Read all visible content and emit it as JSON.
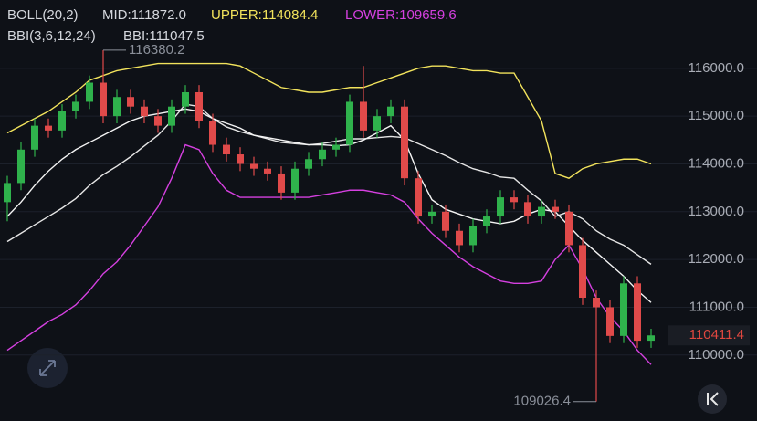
{
  "chart_data": {
    "type": "candlestick",
    "indicator_title": "BOLL(20,2)",
    "bbi_title": "BBI(3,6,12,24)",
    "up_color": "#2fb24c",
    "down_color": "#e04a4a",
    "open": [
      113200,
      113600,
      114300,
      114800,
      114700,
      115100,
      115300,
      115700,
      115000,
      115400,
      115200,
      115000,
      114800,
      115200,
      115500,
      114900,
      114400,
      114200,
      114000,
      113900,
      113800,
      113400,
      113900,
      114100,
      114300,
      114400,
      115300,
      114700,
      115000,
      115200,
      113700,
      112900,
      113000,
      112600,
      112300,
      112700,
      112900,
      113300,
      113200,
      112900,
      113100,
      113000,
      112300,
      111200,
      111000,
      110400,
      111500,
      110300
    ],
    "high": [
      113750,
      114450,
      114950,
      114950,
      115250,
      115450,
      115850,
      116380.2,
      115550,
      115550,
      115350,
      115150,
      115350,
      115650,
      115650,
      115050,
      114550,
      114350,
      114150,
      114050,
      113950,
      114050,
      114250,
      114450,
      114550,
      115450,
      116050,
      115150,
      115350,
      115350,
      113850,
      113150,
      113150,
      112750,
      112850,
      113050,
      113450,
      113450,
      113350,
      113250,
      113250,
      113150,
      112450,
      111350,
      111150,
      111650,
      111650,
      110550
    ],
    "low": [
      112800,
      113450,
      114150,
      114550,
      114550,
      114950,
      115150,
      114850,
      114850,
      115050,
      114850,
      114650,
      114650,
      115050,
      114750,
      114250,
      114050,
      113850,
      113750,
      113650,
      113250,
      113250,
      113750,
      113950,
      114150,
      114250,
      114550,
      114550,
      114850,
      113550,
      112750,
      112750,
      112450,
      112150,
      112150,
      112550,
      112750,
      113050,
      112750,
      112750,
      112850,
      112150,
      111050,
      109026.4,
      110250,
      110250,
      110150,
      110150
    ],
    "close": [
      113600,
      114300,
      114800,
      114700,
      115100,
      115300,
      115700,
      115000,
      115400,
      115200,
      115000,
      114800,
      115200,
      115500,
      114900,
      114400,
      114200,
      114000,
      113900,
      113800,
      113400,
      113900,
      114100,
      114300,
      114400,
      115300,
      114700,
      115000,
      115200,
      113700,
      112900,
      113000,
      112600,
      112300,
      112700,
      112900,
      113300,
      113200,
      112900,
      113100,
      113000,
      112300,
      111200,
      111000,
      110400,
      111500,
      110300,
      110411.4
    ],
    "series": [
      {
        "name": "MID:111872.0",
        "color": "#e6e6e6",
        "values": [
          112375,
          112550,
          112725,
          112900,
          113075,
          113275,
          113550,
          113775,
          113950,
          114150,
          114375,
          114600,
          114900,
          115250,
          115200,
          114950,
          114775,
          114675,
          114600,
          114525,
          114450,
          114425,
          114400,
          114425,
          114475,
          114525,
          114525,
          114550,
          114575,
          114550,
          114425,
          114300,
          114175,
          114025,
          113900,
          113825,
          113725,
          113700,
          113450,
          113225,
          112900,
          113000,
          112850,
          112600,
          112425,
          112300,
          112100,
          111900
        ]
      },
      {
        "name": "UPPER:114084.4",
        "color": "#f2e35c",
        "values": [
          114650,
          114800,
          114950,
          115100,
          115300,
          115500,
          115750,
          115850,
          115950,
          116000,
          116050,
          116100,
          116100,
          116100,
          116100,
          116100,
          116100,
          116050,
          115900,
          115750,
          115600,
          115550,
          115500,
          115500,
          115550,
          115600,
          115600,
          115700,
          115800,
          115900,
          116000,
          116050,
          116050,
          116000,
          115950,
          115950,
          115900,
          115900,
          115400,
          114900,
          113800,
          113700,
          113900,
          114000,
          114050,
          114100,
          114100,
          114000
        ]
      },
      {
        "name": "LOWER:109659.6",
        "color": "#d540e0",
        "values": [
          110100,
          110300,
          110500,
          110700,
          110850,
          111050,
          111350,
          111700,
          111950,
          112300,
          112700,
          113100,
          113700,
          114400,
          114300,
          113800,
          113450,
          113300,
          113300,
          113300,
          113300,
          113300,
          113300,
          113350,
          113400,
          113450,
          113450,
          113400,
          113350,
          113200,
          112850,
          112550,
          112300,
          112050,
          111850,
          111700,
          111550,
          111500,
          111500,
          111550,
          112000,
          112300,
          111800,
          111200,
          110800,
          110500,
          110100,
          109800
        ]
      },
      {
        "name": "BBI:111047.5",
        "color": "#f4f4f4",
        "values": [
          112900,
          113200,
          113550,
          113850,
          114100,
          114300,
          114450,
          114600,
          114750,
          114900,
          115000,
          115050,
          115100,
          115150,
          115100,
          114950,
          114850,
          114750,
          114600,
          114550,
          114500,
          114450,
          114400,
          114400,
          114380,
          114400,
          114500,
          114650,
          114800,
          114500,
          113800,
          113250,
          113050,
          112950,
          112850,
          112800,
          112750,
          112800,
          112950,
          113050,
          113000,
          112700,
          112400,
          112150,
          111900,
          111650,
          111350,
          111100
        ]
      }
    ],
    "ylim": [
      108620,
      117430
    ],
    "yticks": [
      {
        "value": 110000,
        "label": "110000.0"
      },
      {
        "value": 111000,
        "label": "111000.0"
      },
      {
        "value": 112000,
        "label": "112000.0"
      },
      {
        "value": 113000,
        "label": "113000.0"
      },
      {
        "value": 114000,
        "label": "114000.0"
      },
      {
        "value": 115000,
        "label": "115000.0"
      },
      {
        "value": 116000,
        "label": "116000.0"
      }
    ],
    "grid": true
  }
}
